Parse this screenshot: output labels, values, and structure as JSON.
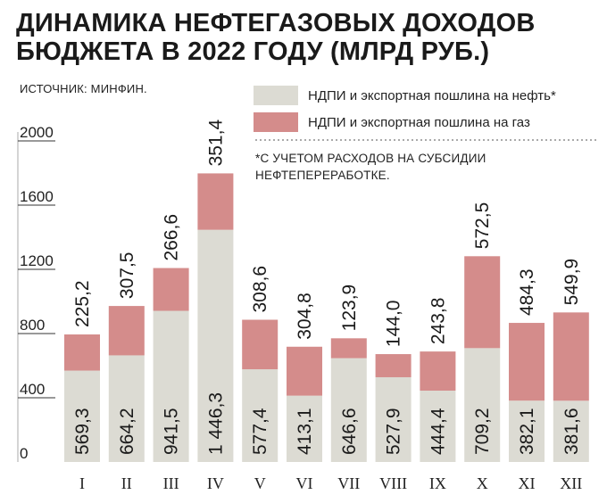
{
  "title_line1": "ДИНАМИКА НЕФТЕГАЗОВЫХ ДОХОДОВ",
  "title_line2": "БЮДЖЕТА В 2022 ГОДУ (МЛРД РУБ.)",
  "source": "ИСТОЧНИК: МИНФИН.",
  "note_line1": "*С УЧЕТОМ РАСХОДОВ НА СУБСИДИИ",
  "note_line2": "НЕФТЕПЕРЕРАБОТКЕ.",
  "colors": {
    "oil": "#dcdbd3",
    "gas": "#d48c8b"
  },
  "chart_data": {
    "type": "bar",
    "stacked": true,
    "ylim": [
      0,
      2000
    ],
    "yticks": [
      0,
      400,
      800,
      1200,
      1600,
      2000
    ],
    "yticks_labels": [
      "0",
      "400",
      "800",
      "1200",
      "1600",
      "2000"
    ],
    "categories": [
      "I",
      "II",
      "III",
      "IV",
      "V",
      "VI",
      "VII",
      "VIII",
      "IX",
      "X",
      "XI",
      "XII"
    ],
    "series": [
      {
        "name": "НДПИ и экспортная пошлина на нефть*",
        "values": [
          569.3,
          664.2,
          941.5,
          1446.3,
          577.4,
          413.1,
          646.6,
          527.9,
          444.4,
          709.2,
          382.1,
          381.6
        ],
        "labels": [
          "569,3",
          "664,2",
          "941,5",
          "1 446,3",
          "577,4",
          "413,1",
          "646,6",
          "527,9",
          "444,4",
          "709,2",
          "382,1",
          "381,6"
        ]
      },
      {
        "name": "НДПИ и экспортная пошлина на газ",
        "values": [
          225.2,
          307.5,
          266.6,
          351.4,
          308.6,
          304.8,
          123.9,
          144.0,
          243.8,
          572.5,
          484.3,
          549.9
        ],
        "labels": [
          "225,2",
          "307,5",
          "266,6",
          "351,4",
          "308,6",
          "304,8",
          "123,9",
          "144,0",
          "243,8",
          "572,5",
          "484,3",
          "549,9"
        ]
      }
    ],
    "legend_position": "top-right",
    "grid": false
  }
}
